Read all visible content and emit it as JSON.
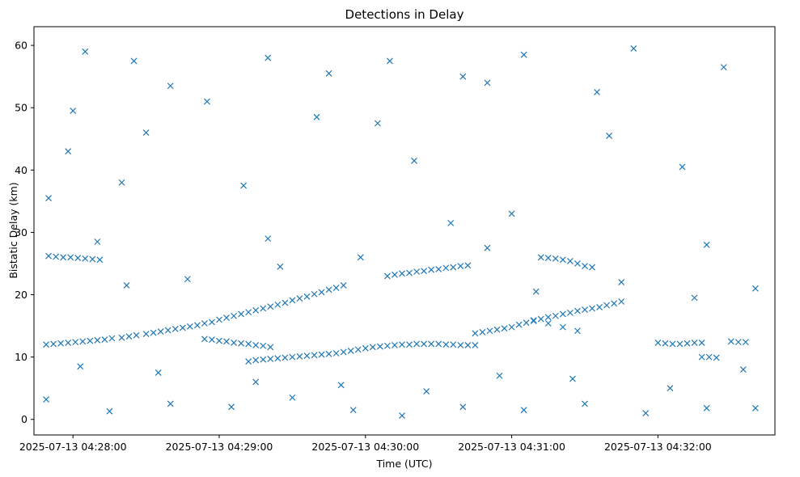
{
  "chart_data": {
    "type": "scatter",
    "title": "Detections in Delay",
    "xlabel": "Time (UTC)",
    "ylabel": "Bistatic Delay (km)",
    "xlim": [
      "2025-07-13 04:27:44",
      "2025-07-13 04:32:48"
    ],
    "ylim": [
      -2.5,
      63
    ],
    "x_ticks": [
      "2025-07-13 04:28:00",
      "2025-07-13 04:29:00",
      "2025-07-13 04:30:00",
      "2025-07-13 04:31:00",
      "2025-07-13 04:32:00"
    ],
    "y_ticks": [
      0,
      10,
      20,
      30,
      40,
      50,
      60
    ],
    "marker": "x",
    "color": "#1f77b4",
    "grid": false,
    "series": [
      {
        "points": [
          [
            "04:27:49",
            12.0
          ],
          [
            "04:27:52",
            12.1
          ],
          [
            "04:27:55",
            12.2
          ],
          [
            "04:27:58",
            12.3
          ],
          [
            "04:28:01",
            12.4
          ],
          [
            "04:28:04",
            12.5
          ],
          [
            "04:28:07",
            12.6
          ],
          [
            "04:28:10",
            12.7
          ],
          [
            "04:28:13",
            12.8
          ],
          [
            "04:28:16",
            13.0
          ],
          [
            "04:28:20",
            13.1
          ],
          [
            "04:28:23",
            13.3
          ],
          [
            "04:28:26",
            13.5
          ],
          [
            "04:28:30",
            13.7
          ],
          [
            "04:28:33",
            13.9
          ],
          [
            "04:28:36",
            14.1
          ],
          [
            "04:28:39",
            14.3
          ],
          [
            "04:28:42",
            14.5
          ],
          [
            "04:28:45",
            14.7
          ],
          [
            "04:28:48",
            14.9
          ],
          [
            "04:28:51",
            15.1
          ],
          [
            "04:28:54",
            15.4
          ],
          [
            "04:28:57",
            15.6
          ],
          [
            "04:29:00",
            16.0
          ],
          [
            "04:29:03",
            16.3
          ],
          [
            "04:29:06",
            16.6
          ],
          [
            "04:29:09",
            16.9
          ],
          [
            "04:29:12",
            17.2
          ],
          [
            "04:29:15",
            17.5
          ],
          [
            "04:29:18",
            17.8
          ],
          [
            "04:29:21",
            18.1
          ],
          [
            "04:29:24",
            18.4
          ],
          [
            "04:29:27",
            18.7
          ],
          [
            "04:29:30",
            19.1
          ],
          [
            "04:29:33",
            19.4
          ],
          [
            "04:29:36",
            19.7
          ],
          [
            "04:29:39",
            20.1
          ],
          [
            "04:29:42",
            20.4
          ],
          [
            "04:29:45",
            20.8
          ],
          [
            "04:29:48",
            21.1
          ],
          [
            "04:29:51",
            21.5
          ],
          [
            "04:27:50",
            26.2
          ],
          [
            "04:27:53",
            26.1
          ],
          [
            "04:27:56",
            26.0
          ],
          [
            "04:27:59",
            26.0
          ],
          [
            "04:28:02",
            25.9
          ],
          [
            "04:28:05",
            25.8
          ],
          [
            "04:28:08",
            25.7
          ],
          [
            "04:28:11",
            25.6
          ],
          [
            "04:28:54",
            12.9
          ],
          [
            "04:28:57",
            12.8
          ],
          [
            "04:29:00",
            12.6
          ],
          [
            "04:29:03",
            12.5
          ],
          [
            "04:29:06",
            12.3
          ],
          [
            "04:29:09",
            12.2
          ],
          [
            "04:29:12",
            12.1
          ],
          [
            "04:29:15",
            11.9
          ],
          [
            "04:29:18",
            11.8
          ],
          [
            "04:29:21",
            11.6
          ],
          [
            "04:29:12",
            9.3
          ],
          [
            "04:29:15",
            9.5
          ],
          [
            "04:29:18",
            9.6
          ],
          [
            "04:29:21",
            9.7
          ],
          [
            "04:29:24",
            9.8
          ],
          [
            "04:29:27",
            9.9
          ],
          [
            "04:29:30",
            10.0
          ],
          [
            "04:29:33",
            10.1
          ],
          [
            "04:29:36",
            10.2
          ],
          [
            "04:29:39",
            10.3
          ],
          [
            "04:29:42",
            10.4
          ],
          [
            "04:29:45",
            10.5
          ],
          [
            "04:29:48",
            10.6
          ],
          [
            "04:29:51",
            10.8
          ],
          [
            "04:29:54",
            11.0
          ],
          [
            "04:29:57",
            11.2
          ],
          [
            "04:30:00",
            11.4
          ],
          [
            "04:30:03",
            11.6
          ],
          [
            "04:30:06",
            11.7
          ],
          [
            "04:30:09",
            11.8
          ],
          [
            "04:30:12",
            11.9
          ],
          [
            "04:30:15",
            12.0
          ],
          [
            "04:30:18",
            12.0
          ],
          [
            "04:30:21",
            12.1
          ],
          [
            "04:30:24",
            12.1
          ],
          [
            "04:30:27",
            12.1
          ],
          [
            "04:30:30",
            12.1
          ],
          [
            "04:30:33",
            12.0
          ],
          [
            "04:30:36",
            12.0
          ],
          [
            "04:30:39",
            11.9
          ],
          [
            "04:30:42",
            11.9
          ],
          [
            "04:30:45",
            11.9
          ],
          [
            "04:30:09",
            23.0
          ],
          [
            "04:30:12",
            23.2
          ],
          [
            "04:30:15",
            23.4
          ],
          [
            "04:30:18",
            23.5
          ],
          [
            "04:30:21",
            23.7
          ],
          [
            "04:30:24",
            23.8
          ],
          [
            "04:30:27",
            24.0
          ],
          [
            "04:30:30",
            24.1
          ],
          [
            "04:30:33",
            24.3
          ],
          [
            "04:30:36",
            24.4
          ],
          [
            "04:30:39",
            24.6
          ],
          [
            "04:30:42",
            24.7
          ],
          [
            "04:30:45",
            13.8
          ],
          [
            "04:30:48",
            14.0
          ],
          [
            "04:30:51",
            14.2
          ],
          [
            "04:30:54",
            14.4
          ],
          [
            "04:30:57",
            14.6
          ],
          [
            "04:31:00",
            14.8
          ],
          [
            "04:31:03",
            15.2
          ],
          [
            "04:31:06",
            15.5
          ],
          [
            "04:31:09",
            15.8
          ],
          [
            "04:31:12",
            16.1
          ],
          [
            "04:31:15",
            16.4
          ],
          [
            "04:31:18",
            16.6
          ],
          [
            "04:31:21",
            16.9
          ],
          [
            "04:31:24",
            17.1
          ],
          [
            "04:31:27",
            17.4
          ],
          [
            "04:31:30",
            17.6
          ],
          [
            "04:31:33",
            17.8
          ],
          [
            "04:31:36",
            18.0
          ],
          [
            "04:31:39",
            18.3
          ],
          [
            "04:31:42",
            18.6
          ],
          [
            "04:31:45",
            18.9
          ],
          [
            "04:31:12",
            26.0
          ],
          [
            "04:31:15",
            25.9
          ],
          [
            "04:31:18",
            25.8
          ],
          [
            "04:31:21",
            25.6
          ],
          [
            "04:31:24",
            25.4
          ],
          [
            "04:31:27",
            25.0
          ],
          [
            "04:31:30",
            24.6
          ],
          [
            "04:31:33",
            24.4
          ],
          [
            "04:31:09",
            15.9
          ],
          [
            "04:31:15",
            15.4
          ],
          [
            "04:31:21",
            14.8
          ],
          [
            "04:31:27",
            14.2
          ],
          [
            "04:32:00",
            12.3
          ],
          [
            "04:32:03",
            12.2
          ],
          [
            "04:32:06",
            12.1
          ],
          [
            "04:32:09",
            12.1
          ],
          [
            "04:32:12",
            12.2
          ],
          [
            "04:32:15",
            12.3
          ],
          [
            "04:32:18",
            12.3
          ],
          [
            "04:32:30",
            12.5
          ],
          [
            "04:32:33",
            12.4
          ],
          [
            "04:32:36",
            12.4
          ],
          [
            "04:32:18",
            10.0
          ],
          [
            "04:32:21",
            10.0
          ],
          [
            "04:32:24",
            9.9
          ],
          [
            "04:28:40",
            53.5
          ],
          [
            "04:30:05",
            47.5
          ],
          [
            "04:27:58",
            43.0
          ],
          [
            "04:28:20",
            38.0
          ],
          [
            "04:31:50",
            59.5
          ],
          [
            "04:32:27",
            56.5
          ],
          [
            "04:30:50",
            54.0
          ],
          [
            "04:28:05",
            59.0
          ],
          [
            "04:29:40",
            48.5
          ],
          [
            "04:30:20",
            41.5
          ],
          [
            "04:31:40",
            45.5
          ],
          [
            "04:32:10",
            40.5
          ],
          [
            "04:28:30",
            46.0
          ],
          [
            "04:29:10",
            37.5
          ],
          [
            "04:27:50",
            35.5
          ],
          [
            "04:31:00",
            33.0
          ],
          [
            "04:30:35",
            31.5
          ],
          [
            "04:29:20",
            29.0
          ],
          [
            "04:28:10",
            28.5
          ],
          [
            "04:32:20",
            28.0
          ],
          [
            "04:27:49",
            3.2
          ],
          [
            "04:28:15",
            1.3
          ],
          [
            "04:28:40",
            2.5
          ],
          [
            "04:29:05",
            2.0
          ],
          [
            "04:29:30",
            3.5
          ],
          [
            "04:29:55",
            1.5
          ],
          [
            "04:30:15",
            0.6
          ],
          [
            "04:30:40",
            2.0
          ],
          [
            "04:31:05",
            1.5
          ],
          [
            "04:31:30",
            2.5
          ],
          [
            "04:31:55",
            1.0
          ],
          [
            "04:32:20",
            1.8
          ],
          [
            "04:32:40",
            1.8
          ],
          [
            "04:28:03",
            8.5
          ],
          [
            "04:28:35",
            7.5
          ],
          [
            "04:29:15",
            6.0
          ],
          [
            "04:29:50",
            5.5
          ],
          [
            "04:30:25",
            4.5
          ],
          [
            "04:30:55",
            7.0
          ],
          [
            "04:31:25",
            6.5
          ],
          [
            "04:32:05",
            5.0
          ],
          [
            "04:32:35",
            8.0
          ],
          [
            "04:28:22",
            21.5
          ],
          [
            "04:28:47",
            22.5
          ],
          [
            "04:29:25",
            24.5
          ],
          [
            "04:29:58",
            26.0
          ],
          [
            "04:30:50",
            27.5
          ],
          [
            "04:31:10",
            20.5
          ],
          [
            "04:31:45",
            22.0
          ],
          [
            "04:32:15",
            19.5
          ],
          [
            "04:32:40",
            21.0
          ],
          [
            "04:28:00",
            49.5
          ],
          [
            "04:28:25",
            57.5
          ],
          [
            "04:28:55",
            51.0
          ],
          [
            "04:29:20",
            58.0
          ],
          [
            "04:29:45",
            55.5
          ],
          [
            "04:30:10",
            57.5
          ],
          [
            "04:30:40",
            55.0
          ],
          [
            "04:31:05",
            58.5
          ],
          [
            "04:31:35",
            52.5
          ]
        ]
      }
    ]
  }
}
